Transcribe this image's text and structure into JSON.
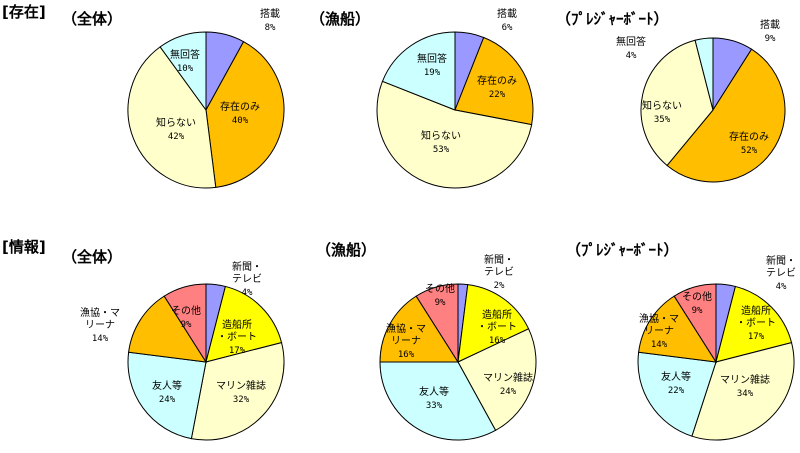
{
  "sections": [
    {
      "label": "[存在]"
    },
    {
      "label": "[情報]"
    }
  ],
  "chart_data": [
    {
      "type": "pie",
      "section": 0,
      "title": "（全体）",
      "slices": [
        {
          "label": "搭載",
          "value": 8,
          "value_text": "8%",
          "color": "#9999ff"
        },
        {
          "label": "存在のみ",
          "value": 40,
          "value_text": "40%",
          "color": "#ffbf00"
        },
        {
          "label": "知らない",
          "value": 42,
          "value_text": "42%",
          "color": "#ffffcc"
        },
        {
          "label": "無回答",
          "value": 10,
          "value_text": "10%",
          "color": "#ccffff"
        }
      ]
    },
    {
      "type": "pie",
      "section": 0,
      "title": "（漁船）",
      "slices": [
        {
          "label": "搭載",
          "value": 6,
          "value_text": "6%",
          "color": "#9999ff"
        },
        {
          "label": "存在のみ",
          "value": 22,
          "value_text": "22%",
          "color": "#ffbf00"
        },
        {
          "label": "知らない",
          "value": 53,
          "value_text": "53%",
          "color": "#ffffcc"
        },
        {
          "label": "無回答",
          "value": 19,
          "value_text": "19%",
          "color": "#ccffff"
        }
      ]
    },
    {
      "type": "pie",
      "section": 0,
      "title": "（ﾌﾟﾚｼﾞｬｰﾎﾞｰﾄ）",
      "slices": [
        {
          "label": "搭載",
          "value": 9,
          "value_text": "9%",
          "color": "#9999ff"
        },
        {
          "label": "存在のみ",
          "value": 52,
          "value_text": "52%",
          "color": "#ffbf00"
        },
        {
          "label": "知らない",
          "value": 35,
          "value_text": "35%",
          "color": "#ffffcc"
        },
        {
          "label": "無回答",
          "value": 4,
          "value_text": "4%",
          "color": "#ccffff"
        }
      ]
    },
    {
      "type": "pie",
      "section": 1,
      "title": "（全体）",
      "slices": [
        {
          "label": "新聞・テレビ",
          "value": 4,
          "value_text": "4%",
          "color": "#9999ff"
        },
        {
          "label": "造船所・ボート",
          "value": 17,
          "value_text": "17%",
          "color": "#ffff00"
        },
        {
          "label": "マリン雑誌",
          "value": 32,
          "value_text": "32%",
          "color": "#ffffcc"
        },
        {
          "label": "友人等",
          "value": 24,
          "value_text": "24%",
          "color": "#ccffff"
        },
        {
          "label": "漁協・マリーナ",
          "value": 14,
          "value_text": "14%",
          "color": "#ffbf00"
        },
        {
          "label": "その他",
          "value": 9,
          "value_text": "9%",
          "color": "#ff8080"
        }
      ]
    },
    {
      "type": "pie",
      "section": 1,
      "title": "（漁船）",
      "slices": [
        {
          "label": "新聞・テレビ",
          "value": 2,
          "value_text": "2%",
          "color": "#9999ff"
        },
        {
          "label": "造船所・ボート",
          "value": 16,
          "value_text": "16%",
          "color": "#ffff00"
        },
        {
          "label": "マリン雑誌",
          "value": 24,
          "value_text": "24%",
          "color": "#ffffcc"
        },
        {
          "label": "友人等",
          "value": 33,
          "value_text": "33%",
          "color": "#ccffff"
        },
        {
          "label": "漁協・マリーナ",
          "value": 16,
          "value_text": "16%",
          "color": "#ffbf00"
        },
        {
          "label": "その他",
          "value": 9,
          "value_text": "9%",
          "color": "#ff8080"
        }
      ]
    },
    {
      "type": "pie",
      "section": 1,
      "title": "（ﾌﾟﾚｼﾞｬｰﾎﾞｰﾄ）",
      "slices": [
        {
          "label": "新聞・テレビ",
          "value": 4,
          "value_text": "4%",
          "color": "#9999ff"
        },
        {
          "label": "造船所・ボート",
          "value": 17,
          "value_text": "17%",
          "color": "#ffff00"
        },
        {
          "label": "マリン雑誌",
          "value": 34,
          "value_text": "34%",
          "color": "#ffffcc"
        },
        {
          "label": "友人等",
          "value": 22,
          "value_text": "22%",
          "color": "#ccffff"
        },
        {
          "label": "漁協・マリーナ",
          "value": 14,
          "value_text": "14%",
          "color": "#ffbf00"
        },
        {
          "label": "その他",
          "value": 9,
          "value_text": "9%",
          "color": "#ff8080"
        }
      ]
    }
  ]
}
